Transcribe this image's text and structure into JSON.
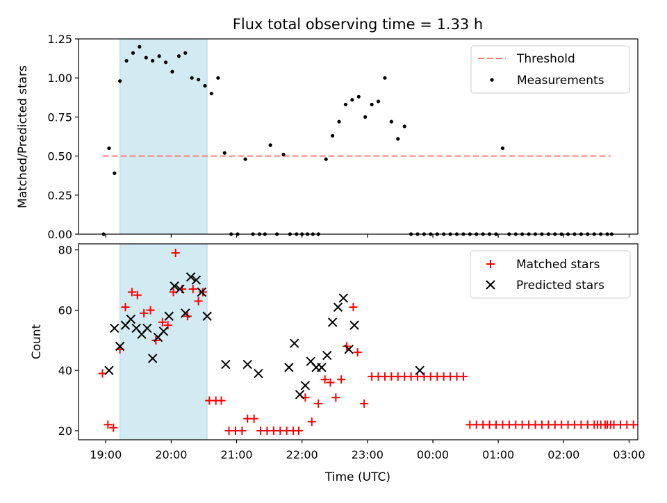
{
  "title": "Flux total observing time = 1.33 h",
  "chart_data": [
    {
      "type": "scatter",
      "panel": "top",
      "ylabel": "Matched/Predicted stars",
      "ylim": [
        0,
        1.25
      ],
      "yticks": [
        0,
        0.25,
        0.5,
        0.75,
        1.0,
        1.25
      ],
      "ytick_labels": [
        "0.00",
        "0.25",
        "0.50",
        "0.75",
        "1.00",
        "1.25"
      ],
      "xlim": [
        "18:35",
        "03:08"
      ],
      "shaded_region": {
        "from": "19:13",
        "to": "20:33",
        "color": "#add8e6"
      },
      "threshold": {
        "value": 0.5,
        "from": "18:57",
        "to": "02:43",
        "color": "#ff7f7f",
        "style": "dashed"
      },
      "legend": {
        "placement": "top-right",
        "entries": [
          "Threshold",
          "Measurements"
        ]
      },
      "series": [
        {
          "name": "Measurements",
          "color": "#000000",
          "marker": "dot",
          "points": [
            [
              "18:58",
              0.0
            ],
            [
              "19:03",
              0.55
            ],
            [
              "19:08",
              0.39
            ],
            [
              "19:13",
              0.98
            ],
            [
              "19:19",
              1.11
            ],
            [
              "19:25",
              1.16
            ],
            [
              "19:31",
              1.2
            ],
            [
              "19:37",
              1.13
            ],
            [
              "19:43",
              1.11
            ],
            [
              "19:49",
              1.14
            ],
            [
              "19:55",
              1.1
            ],
            [
              "20:01",
              1.04
            ],
            [
              "20:07",
              1.14
            ],
            [
              "20:13",
              1.16
            ],
            [
              "20:19",
              1.0
            ],
            [
              "20:25",
              0.99
            ],
            [
              "20:31",
              0.95
            ],
            [
              "20:37",
              0.9
            ],
            [
              "20:43",
              1.0
            ],
            [
              "20:49",
              0.52
            ],
            [
              "20:55",
              0.0
            ],
            [
              "21:01",
              0.0
            ],
            [
              "21:08",
              0.48
            ],
            [
              "21:15",
              0.0
            ],
            [
              "21:21",
              0.0
            ],
            [
              "21:26",
              0.0
            ],
            [
              "21:31",
              0.57
            ],
            [
              "21:37",
              0.0
            ],
            [
              "21:43",
              0.51
            ],
            [
              "21:49",
              0.0
            ],
            [
              "21:55",
              0.0
            ],
            [
              "22:00",
              0.0
            ],
            [
              "22:05",
              0.0
            ],
            [
              "22:10",
              0.0
            ],
            [
              "22:15",
              0.0
            ],
            [
              "22:22",
              0.48
            ],
            [
              "22:28",
              0.63
            ],
            [
              "22:34",
              0.72
            ],
            [
              "22:40",
              0.83
            ],
            [
              "22:46",
              0.86
            ],
            [
              "22:52",
              0.88
            ],
            [
              "22:58",
              0.75
            ],
            [
              "23:04",
              0.83
            ],
            [
              "23:10",
              0.85
            ],
            [
              "23:16",
              1.0
            ],
            [
              "23:22",
              0.72
            ],
            [
              "23:28",
              0.61
            ],
            [
              "23:34",
              0.69
            ],
            [
              "23:40",
              0.0
            ],
            [
              "23:46",
              0.0
            ],
            [
              "23:52",
              0.0
            ],
            [
              "23:58",
              0.0
            ],
            [
              "00:04",
              0.0
            ],
            [
              "00:10",
              0.0
            ],
            [
              "00:16",
              0.0
            ],
            [
              "00:22",
              0.0
            ],
            [
              "00:28",
              0.0
            ],
            [
              "00:34",
              0.0
            ],
            [
              "00:40",
              0.0
            ],
            [
              "00:46",
              0.0
            ],
            [
              "00:52",
              0.0
            ],
            [
              "00:58",
              0.0
            ],
            [
              "01:04",
              0.55
            ],
            [
              "01:10",
              0.0
            ],
            [
              "01:16",
              0.0
            ],
            [
              "01:22",
              0.0
            ],
            [
              "01:28",
              0.0
            ],
            [
              "01:34",
              0.0
            ],
            [
              "01:40",
              0.0
            ],
            [
              "01:46",
              0.0
            ],
            [
              "01:52",
              0.0
            ],
            [
              "01:58",
              0.0
            ],
            [
              "02:04",
              0.0
            ],
            [
              "02:10",
              0.0
            ],
            [
              "02:16",
              0.0
            ],
            [
              "02:22",
              0.0
            ],
            [
              "02:28",
              0.0
            ],
            [
              "02:34",
              0.0
            ],
            [
              "02:40",
              0.0
            ],
            [
              "02:44",
              0.0
            ]
          ]
        }
      ]
    },
    {
      "type": "scatter",
      "panel": "bottom",
      "xlabel": "Time (UTC)",
      "ylabel": "Count",
      "ylim": [
        17,
        82
      ],
      "yticks": [
        20,
        40,
        60,
        80
      ],
      "ytick_labels": [
        "20",
        "40",
        "60",
        "80"
      ],
      "xlim": [
        "18:35",
        "03:08"
      ],
      "xticks": [
        "19:00",
        "20:00",
        "21:00",
        "22:00",
        "23:00",
        "00:00",
        "01:00",
        "02:00",
        "03:00"
      ],
      "xtick_labels": [
        "19:00",
        "20:00",
        "21:00",
        "22:00",
        "23:00",
        "00:00",
        "01:00",
        "02:00",
        "03:00"
      ],
      "shaded_region": {
        "from": "19:13",
        "to": "20:33",
        "color": "#add8e6"
      },
      "legend": {
        "placement": "top-right",
        "entries": [
          "Matched stars",
          "Predicted stars"
        ]
      },
      "series": [
        {
          "name": "Matched stars",
          "color": "#ff0000",
          "marker": "plus",
          "points": [
            [
              "18:57",
              39
            ],
            [
              "19:02",
              22
            ],
            [
              "19:07",
              21
            ],
            [
              "19:13",
              47
            ],
            [
              "19:18",
              61
            ],
            [
              "19:24",
              66
            ],
            [
              "19:29",
              65
            ],
            [
              "19:35",
              59
            ],
            [
              "19:41",
              60
            ],
            [
              "19:46",
              50
            ],
            [
              "19:52",
              56
            ],
            [
              "19:57",
              55
            ],
            [
              "20:02",
              66
            ],
            [
              "20:04",
              79
            ],
            [
              "20:10",
              67
            ],
            [
              "20:15",
              58
            ],
            [
              "20:20",
              67
            ],
            [
              "20:25",
              63
            ],
            [
              "20:29",
              66
            ],
            [
              "20:35",
              30
            ],
            [
              "20:41",
              30
            ],
            [
              "20:46",
              30
            ],
            [
              "20:53",
              20
            ],
            [
              "20:59",
              20
            ],
            [
              "21:05",
              20
            ],
            [
              "21:10",
              24
            ],
            [
              "21:16",
              24
            ],
            [
              "21:22",
              20
            ],
            [
              "21:28",
              20
            ],
            [
              "21:34",
              20
            ],
            [
              "21:40",
              20
            ],
            [
              "21:46",
              20
            ],
            [
              "21:52",
              20
            ],
            [
              "21:57",
              20
            ],
            [
              "22:03",
              31
            ],
            [
              "22:09",
              23
            ],
            [
              "22:15",
              29
            ],
            [
              "22:21",
              37
            ],
            [
              "22:26",
              36
            ],
            [
              "22:31",
              31
            ],
            [
              "22:36",
              37
            ],
            [
              "22:41",
              48
            ],
            [
              "22:47",
              61
            ],
            [
              "22:51",
              46
            ],
            [
              "22:57",
              29
            ],
            [
              "23:04",
              38
            ],
            [
              "23:10",
              38
            ],
            [
              "23:16",
              38
            ],
            [
              "23:22",
              38
            ],
            [
              "23:28",
              38
            ],
            [
              "23:34",
              38
            ],
            [
              "23:40",
              38
            ],
            [
              "23:46",
              38
            ],
            [
              "23:52",
              38
            ],
            [
              "23:58",
              38
            ],
            [
              "00:04",
              38
            ],
            [
              "00:10",
              38
            ],
            [
              "00:16",
              38
            ],
            [
              "00:22",
              38
            ],
            [
              "00:28",
              38
            ],
            [
              "00:34",
              22
            ],
            [
              "00:40",
              22
            ],
            [
              "00:46",
              22
            ],
            [
              "00:52",
              22
            ],
            [
              "00:58",
              22
            ],
            [
              "01:04",
              22
            ],
            [
              "01:10",
              22
            ],
            [
              "01:16",
              22
            ],
            [
              "01:22",
              22
            ],
            [
              "01:28",
              22
            ],
            [
              "01:34",
              22
            ],
            [
              "01:40",
              22
            ],
            [
              "01:46",
              22
            ],
            [
              "01:52",
              22
            ],
            [
              "01:58",
              22
            ],
            [
              "02:04",
              22
            ],
            [
              "02:10",
              22
            ],
            [
              "02:16",
              22
            ],
            [
              "02:22",
              22
            ],
            [
              "02:28",
              22
            ],
            [
              "02:34",
              22
            ],
            [
              "02:40",
              22
            ],
            [
              "02:46",
              22
            ],
            [
              "02:52",
              22
            ],
            [
              "02:58",
              22
            ],
            [
              "03:04",
              22
            ],
            [
              "02:31",
              22
            ],
            [
              "02:38",
              22
            ],
            [
              "02:43",
              22
            ]
          ]
        },
        {
          "name": "Predicted stars",
          "color": "#000000",
          "marker": "x",
          "points": [
            [
              "19:03",
              40
            ],
            [
              "19:08",
              54
            ],
            [
              "19:13",
              48
            ],
            [
              "19:18",
              55
            ],
            [
              "19:23",
              57
            ],
            [
              "19:28",
              54
            ],
            [
              "19:33",
              52
            ],
            [
              "19:38",
              54
            ],
            [
              "19:43",
              44
            ],
            [
              "19:48",
              51
            ],
            [
              "19:53",
              53
            ],
            [
              "19:58",
              58
            ],
            [
              "20:03",
              68
            ],
            [
              "20:08",
              67
            ],
            [
              "20:13",
              59
            ],
            [
              "20:18",
              71
            ],
            [
              "20:23",
              70
            ],
            [
              "20:28",
              66
            ],
            [
              "20:33",
              58
            ],
            [
              "20:50",
              42
            ],
            [
              "21:10",
              42
            ],
            [
              "21:20",
              39
            ],
            [
              "21:48",
              41
            ],
            [
              "21:53",
              49
            ],
            [
              "21:58",
              32
            ],
            [
              "22:03",
              35
            ],
            [
              "22:08",
              43
            ],
            [
              "22:13",
              41
            ],
            [
              "22:18",
              41
            ],
            [
              "22:23",
              45
            ],
            [
              "22:28",
              56
            ],
            [
              "22:33",
              61
            ],
            [
              "22:38",
              64
            ],
            [
              "22:43",
              47
            ],
            [
              "22:48",
              55
            ],
            [
              "23:48",
              40
            ]
          ]
        }
      ]
    }
  ]
}
